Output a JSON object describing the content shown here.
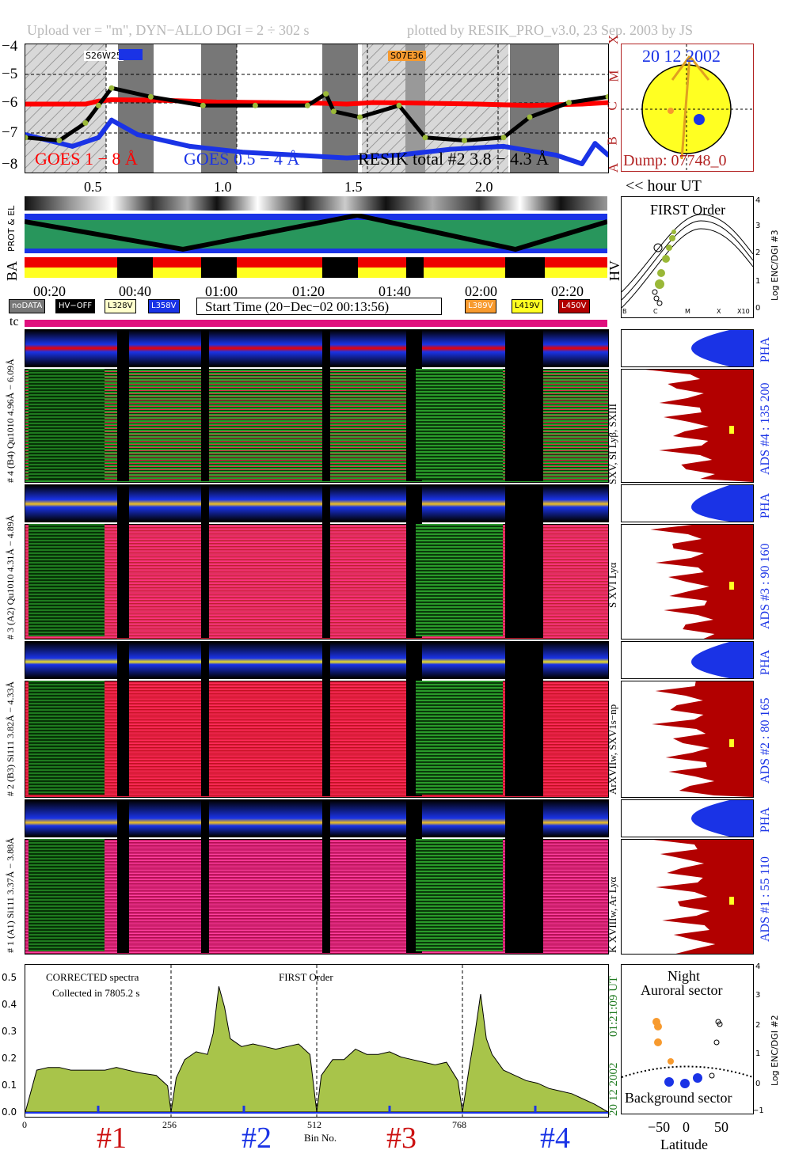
{
  "header": {
    "upload": "Upload ver = \"m\", DYN−ALLO DGI =   2 ÷ 302 s",
    "plotted": "plotted by RESIK_PRO_v3.0, 23 Sep. 2003 by JS"
  },
  "goes_panel": {
    "yticks": [
      "−4",
      "−5",
      "−6",
      "−7",
      "−8"
    ],
    "classes": [
      "X",
      "M",
      "C",
      "B",
      "A"
    ],
    "legend_goes_long": "GOES 1 − 8 Å",
    "legend_goes_short": "GOES 0.5 − 4 Å",
    "legend_resik": "RESIK total #2  3.8 − 4.3 Å",
    "event1": "S26W25",
    "event2": "S07E36",
    "xticks": [
      "0.5",
      "1.0",
      "1.5",
      "2.0"
    ],
    "xunit": "<< hour UT",
    "colors": {
      "goes_long": "#ff0000",
      "goes_short": "#1a33e6",
      "resik": "#000000"
    }
  },
  "sun_box": {
    "date": "20 12 2002",
    "dump": "Dump: 07748_0"
  },
  "orbit_panel": {
    "label_prot": "PROT & EL",
    "label_ba": "BA",
    "label_hv": "HV"
  },
  "first_order_box": {
    "title": "FIRST Order",
    "ylabel": "Log ENC/DGI #3",
    "yticks": [
      "4",
      "3",
      "2",
      "1",
      "0"
    ],
    "xticks": [
      "B",
      "C",
      "M",
      "X",
      "X10"
    ]
  },
  "time_axis": {
    "ticks": [
      "00:20",
      "00:40",
      "01:00",
      "01:20",
      "01:40",
      "02:00",
      "02:20"
    ]
  },
  "legend_badges": {
    "nodata": "noDATA",
    "hvoff": "HV−OFF",
    "l328": "L328V",
    "l358": "L358V",
    "start_time": "Start Time (20−Dec−02 00:13:56)",
    "l389": "L389V",
    "l419": "L419V",
    "l450": "L450V",
    "tc": "tc"
  },
  "detectors": [
    {
      "pha_range": "# 4 (B4) Qu1010  4.96Å − 6.09Å",
      "ads_label": "ADS #4 :   135 200",
      "line_label": "SXV, SI Lyβ, SXIII",
      "pha": "PHA"
    },
    {
      "pha_range": "# 3 (A2) Qu1010  4.31Å − 4.89Å",
      "ads_label": "ADS #3 :   90 160",
      "line_label": "S XVI Lyα",
      "pha": "PHA"
    },
    {
      "pha_range": "# 2 (B3) Si111  3.82Å − 4.33Å",
      "ads_label": "ADS #2 :   80 165",
      "line_label": "ArXVIIw, SXV1s−np",
      "pha": "PHA"
    },
    {
      "pha_range": "# 1 (A1) Si111  3.37Å − 3.88Å",
      "ads_label": "ADS #1 :   55 110",
      "line_label": "K XVIIIw, Ar Lyα",
      "pha": "PHA"
    }
  ],
  "spectrum_panel": {
    "text1": "CORRECTED spectra",
    "text2": "Collected in  7805.2 s",
    "text3": "FIRST Order",
    "yticks": [
      "0.5",
      "0.4",
      "0.3",
      "0.2",
      "0.1",
      "0.0"
    ],
    "xticks": [
      "0",
      "256",
      "512",
      "768"
    ],
    "xlabel": "Bin No.",
    "date": "20 12 2002",
    "time": "01:21:09 UT",
    "detector_labels": [
      "#1",
      "#2",
      "#3",
      "#4"
    ]
  },
  "night_box": {
    "title1": "Night",
    "title2": "Auroral sector",
    "bottom": "Background sector",
    "ylabel": "Log ENC/DGI #2",
    "yticks": [
      "4",
      "3",
      "2",
      "1",
      "0",
      "−1"
    ],
    "xticks": [
      "−50",
      "0",
      "50"
    ],
    "xlabel": "Latitude"
  },
  "chart_data": [
    {
      "type": "line",
      "title": "",
      "xlabel": "<< hour UT",
      "ylabel": "",
      "xlim": [
        0.27,
        2.5
      ],
      "ylim": [
        -8.2,
        -3.8
      ],
      "series": [
        {
          "name": "GOES 1 − 8 Å",
          "x": [
            0.27,
            0.5,
            0.55,
            0.6,
            0.8,
            1.0,
            1.2,
            1.4,
            1.5,
            1.6,
            1.8,
            2.0,
            2.2,
            2.4,
            2.5
          ],
          "values": [
            -5.85,
            -5.85,
            -5.75,
            -5.7,
            -5.72,
            -5.78,
            -5.8,
            -5.82,
            -5.85,
            -5.8,
            -5.82,
            -5.85,
            -5.9,
            -5.85,
            -5.8
          ]
        },
        {
          "name": "GOES 0.5 − 4 Å",
          "x": [
            0.27,
            0.45,
            0.55,
            0.6,
            0.7,
            0.9,
            1.1,
            1.3,
            1.5,
            1.7,
            1.9,
            2.1,
            2.3,
            2.4,
            2.45,
            2.5
          ],
          "values": [
            -6.9,
            -7.3,
            -7.0,
            -6.4,
            -6.9,
            -7.3,
            -7.5,
            -7.6,
            -7.7,
            -7.6,
            -7.4,
            -7.3,
            -7.6,
            -7.9,
            -7.2,
            -7.6
          ]
        },
        {
          "name": "RESIK total #2  3.8 − 4.3 Å",
          "x": [
            0.27,
            0.4,
            0.5,
            0.55,
            0.6,
            0.75,
            0.95,
            1.15,
            1.35,
            1.42,
            1.45,
            1.55,
            1.7,
            1.8,
            1.95,
            2.1,
            2.2,
            2.35,
            2.5
          ],
          "values": [
            -7.0,
            -7.1,
            -6.5,
            -5.9,
            -5.3,
            -5.6,
            -5.9,
            -5.9,
            -5.9,
            -5.5,
            -6.1,
            -6.3,
            -5.9,
            -7.0,
            -7.1,
            -7.0,
            -6.3,
            -5.8,
            -5.6
          ]
        }
      ]
    },
    {
      "type": "area",
      "title": "",
      "xlabel": "Bin No.",
      "ylabel": "",
      "xlim": [
        0,
        1024
      ],
      "ylim": [
        0,
        0.55
      ],
      "x": [
        0,
        20,
        40,
        60,
        80,
        100,
        120,
        140,
        160,
        180,
        200,
        230,
        250,
        256,
        265,
        280,
        300,
        320,
        330,
        340,
        350,
        360,
        380,
        400,
        420,
        440,
        460,
        480,
        500,
        512,
        520,
        540,
        560,
        580,
        600,
        620,
        640,
        660,
        680,
        700,
        720,
        740,
        760,
        768,
        780,
        790,
        800,
        810,
        820,
        840,
        860,
        880,
        900,
        920,
        940,
        960,
        980,
        1000,
        1024
      ],
      "series": [
        {
          "name": "",
          "values": [
            0.0,
            0.16,
            0.17,
            0.17,
            0.16,
            0.16,
            0.16,
            0.16,
            0.17,
            0.16,
            0.15,
            0.14,
            0.1,
            0.0,
            0.13,
            0.2,
            0.23,
            0.22,
            0.3,
            0.48,
            0.4,
            0.28,
            0.25,
            0.26,
            0.25,
            0.24,
            0.25,
            0.26,
            0.22,
            0.0,
            0.14,
            0.2,
            0.2,
            0.24,
            0.22,
            0.22,
            0.23,
            0.21,
            0.2,
            0.19,
            0.18,
            0.19,
            0.12,
            0.0,
            0.17,
            0.3,
            0.45,
            0.28,
            0.22,
            0.16,
            0.14,
            0.12,
            0.11,
            0.09,
            0.08,
            0.07,
            0.05,
            0.03,
            0.0
          ]
        }
      ]
    }
  ]
}
